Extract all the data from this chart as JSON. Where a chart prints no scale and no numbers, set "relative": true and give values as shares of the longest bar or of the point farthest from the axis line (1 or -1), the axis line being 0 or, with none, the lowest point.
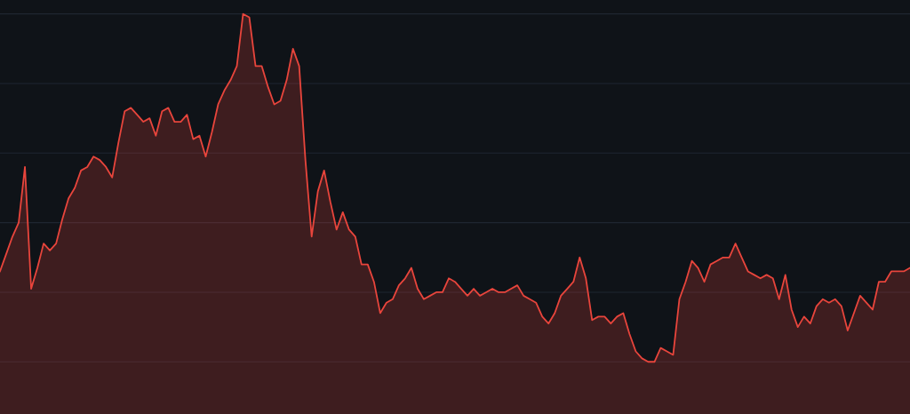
{
  "chart_data": {
    "type": "area",
    "relative": true,
    "grid": "y",
    "color": "#e8453c",
    "values": [
      0.26,
      0.31,
      0.36,
      0.4,
      0.56,
      0.21,
      0.27,
      0.34,
      0.32,
      0.34,
      0.41,
      0.47,
      0.5,
      0.55,
      0.56,
      0.59,
      0.58,
      0.56,
      0.53,
      0.63,
      0.72,
      0.73,
      0.71,
      0.69,
      0.7,
      0.65,
      0.72,
      0.73,
      0.69,
      0.69,
      0.71,
      0.64,
      0.65,
      0.59,
      0.66,
      0.74,
      0.78,
      0.81,
      0.85,
      1.0,
      0.99,
      0.85,
      0.85,
      0.79,
      0.74,
      0.75,
      0.81,
      0.9,
      0.85,
      0.58,
      0.36,
      0.49,
      0.55,
      0.46,
      0.38,
      0.43,
      0.38,
      0.36,
      0.28,
      0.28,
      0.23,
      0.14,
      0.17,
      0.18,
      0.22,
      0.24,
      0.27,
      0.21,
      0.18,
      0.19,
      0.2,
      0.2,
      0.24,
      0.23,
      0.21,
      0.19,
      0.21,
      0.19,
      0.2,
      0.21,
      0.2,
      0.2,
      0.21,
      0.22,
      0.19,
      0.18,
      0.17,
      0.13,
      0.11,
      0.14,
      0.19,
      0.21,
      0.23,
      0.3,
      0.24,
      0.12,
      0.13,
      0.13,
      0.11,
      0.13,
      0.14,
      0.08,
      0.03,
      0.01,
      0,
      0.0,
      0.04,
      0.03,
      0.02,
      0.18,
      0.23,
      0.29,
      0.27,
      0.23,
      0.28,
      0.29,
      0.3,
      0.3,
      0.34,
      0.3,
      0.26,
      0.25,
      0.24,
      0.25,
      0.24,
      0.18,
      0.25,
      0.15,
      0.1,
      0.13,
      0.11,
      0.16,
      0.18,
      0.17,
      0.18,
      0.16,
      0.09,
      0.14,
      0.19,
      0.17,
      0.15,
      0.23,
      0.23,
      0.26,
      0.26,
      0.26,
      0.27
    ]
  }
}
